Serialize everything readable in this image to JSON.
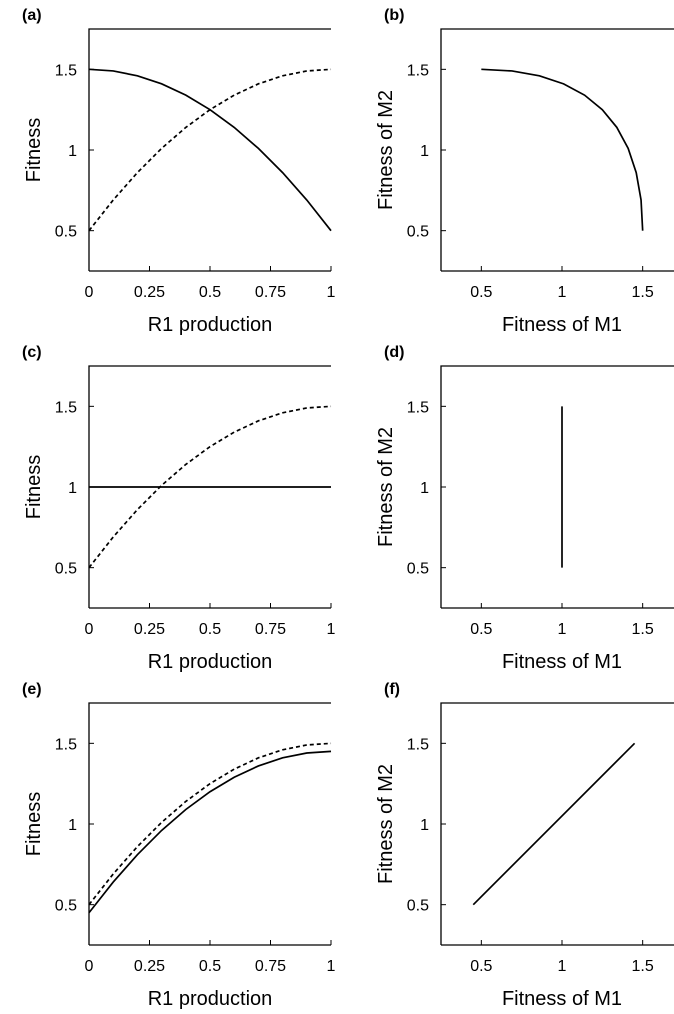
{
  "chart_data": [
    {
      "panel": "(a)",
      "type": "line",
      "xlabel": "R1 production",
      "ylabel": "Fitness",
      "xlim": [
        0,
        1
      ],
      "ylim": [
        0.25,
        1.75
      ],
      "xticks": [
        0,
        0.25,
        0.5,
        0.75,
        1
      ],
      "xtick_labels": [
        "0",
        "0.25",
        "0.5",
        "0.75",
        "1"
      ],
      "yticks": [
        0.5,
        1,
        1.5
      ],
      "ytick_labels": [
        "0.5",
        "1",
        "1.5"
      ],
      "grid": false,
      "series": [
        {
          "style": "solid",
          "color": "#000000",
          "x": [
            0,
            0.1,
            0.2,
            0.3,
            0.4,
            0.5,
            0.6,
            0.7,
            0.8,
            0.9,
            1
          ],
          "y": [
            1.5,
            1.49,
            1.46,
            1.41,
            1.34,
            1.25,
            1.14,
            1.01,
            0.86,
            0.69,
            0.5
          ]
        },
        {
          "style": "dashed",
          "color": "#000000",
          "x": [
            0,
            0.1,
            0.2,
            0.3,
            0.4,
            0.5,
            0.6,
            0.7,
            0.8,
            0.9,
            1
          ],
          "y": [
            0.5,
            0.69,
            0.86,
            1.01,
            1.14,
            1.25,
            1.34,
            1.41,
            1.46,
            1.49,
            1.5
          ]
        }
      ]
    },
    {
      "panel": "(b)",
      "type": "line",
      "xlabel": "Fitness of M1",
      "ylabel": "Fitness of M2",
      "xlim": [
        0.25,
        1.75
      ],
      "ylim": [
        0.25,
        1.75
      ],
      "xticks": [
        0.5,
        1,
        1.5
      ],
      "xtick_labels": [
        "0.5",
        "1",
        "1.5"
      ],
      "yticks": [
        0.5,
        1,
        1.5
      ],
      "ytick_labels": [
        "0.5",
        "1",
        "1.5"
      ],
      "grid": false,
      "series": [
        {
          "style": "solid",
          "color": "#000000",
          "x": [
            0.5,
            0.69,
            0.86,
            1.01,
            1.14,
            1.25,
            1.34,
            1.41,
            1.46,
            1.49,
            1.5
          ],
          "y": [
            1.5,
            1.49,
            1.46,
            1.41,
            1.34,
            1.25,
            1.14,
            1.01,
            0.86,
            0.69,
            0.5
          ]
        }
      ]
    },
    {
      "panel": "(c)",
      "type": "line",
      "xlabel": "R1 production",
      "ylabel": "Fitness",
      "xlim": [
        0,
        1
      ],
      "ylim": [
        0.25,
        1.75
      ],
      "xticks": [
        0,
        0.25,
        0.5,
        0.75,
        1
      ],
      "xtick_labels": [
        "0",
        "0.25",
        "0.5",
        "0.75",
        "1"
      ],
      "yticks": [
        0.5,
        1,
        1.5
      ],
      "ytick_labels": [
        "0.5",
        "1",
        "1.5"
      ],
      "grid": false,
      "series": [
        {
          "style": "solid",
          "color": "#000000",
          "x": [
            0,
            1
          ],
          "y": [
            1,
            1
          ]
        },
        {
          "style": "dashed",
          "color": "#000000",
          "x": [
            0,
            0.1,
            0.2,
            0.3,
            0.4,
            0.5,
            0.6,
            0.7,
            0.8,
            0.9,
            1
          ],
          "y": [
            0.5,
            0.69,
            0.86,
            1.01,
            1.14,
            1.25,
            1.34,
            1.41,
            1.46,
            1.49,
            1.5
          ]
        }
      ]
    },
    {
      "panel": "(d)",
      "type": "line",
      "xlabel": "Fitness of M1",
      "ylabel": "Fitness of M2",
      "xlim": [
        0.25,
        1.75
      ],
      "ylim": [
        0.25,
        1.75
      ],
      "xticks": [
        0.5,
        1,
        1.5
      ],
      "xtick_labels": [
        "0.5",
        "1",
        "1.5"
      ],
      "yticks": [
        0.5,
        1,
        1.5
      ],
      "ytick_labels": [
        "0.5",
        "1",
        "1.5"
      ],
      "grid": false,
      "series": [
        {
          "style": "solid",
          "color": "#000000",
          "x": [
            1,
            1
          ],
          "y": [
            0.5,
            1.5
          ]
        }
      ]
    },
    {
      "panel": "(e)",
      "type": "line",
      "xlabel": "R1 production",
      "ylabel": "Fitness",
      "xlim": [
        0,
        1
      ],
      "ylim": [
        0.25,
        1.75
      ],
      "xticks": [
        0,
        0.25,
        0.5,
        0.75,
        1
      ],
      "xtick_labels": [
        "0",
        "0.25",
        "0.5",
        "0.75",
        "1"
      ],
      "yticks": [
        0.5,
        1,
        1.5
      ],
      "ytick_labels": [
        "0.5",
        "1",
        "1.5"
      ],
      "grid": false,
      "series": [
        {
          "style": "solid",
          "color": "#000000",
          "x": [
            0,
            0.1,
            0.2,
            0.3,
            0.4,
            0.5,
            0.6,
            0.7,
            0.8,
            0.9,
            1
          ],
          "y": [
            0.45,
            0.64,
            0.81,
            0.96,
            1.09,
            1.2,
            1.29,
            1.36,
            1.41,
            1.44,
            1.45
          ]
        },
        {
          "style": "dashed",
          "color": "#000000",
          "x": [
            0,
            0.1,
            0.2,
            0.3,
            0.4,
            0.5,
            0.6,
            0.7,
            0.8,
            0.9,
            1
          ],
          "y": [
            0.5,
            0.69,
            0.86,
            1.01,
            1.14,
            1.25,
            1.34,
            1.41,
            1.46,
            1.49,
            1.5
          ]
        }
      ]
    },
    {
      "panel": "(f)",
      "type": "line",
      "xlabel": "Fitness of M1",
      "ylabel": "Fitness of M2",
      "xlim": [
        0.25,
        1.75
      ],
      "ylim": [
        0.25,
        1.75
      ],
      "xticks": [
        0.5,
        1,
        1.5
      ],
      "xtick_labels": [
        "0.5",
        "1",
        "1.5"
      ],
      "yticks": [
        0.5,
        1,
        1.5
      ],
      "ytick_labels": [
        "0.5",
        "1",
        "1.5"
      ],
      "grid": false,
      "series": [
        {
          "style": "solid",
          "color": "#000000",
          "x": [
            0.45,
            1.45
          ],
          "y": [
            0.5,
            1.5
          ]
        }
      ]
    }
  ]
}
